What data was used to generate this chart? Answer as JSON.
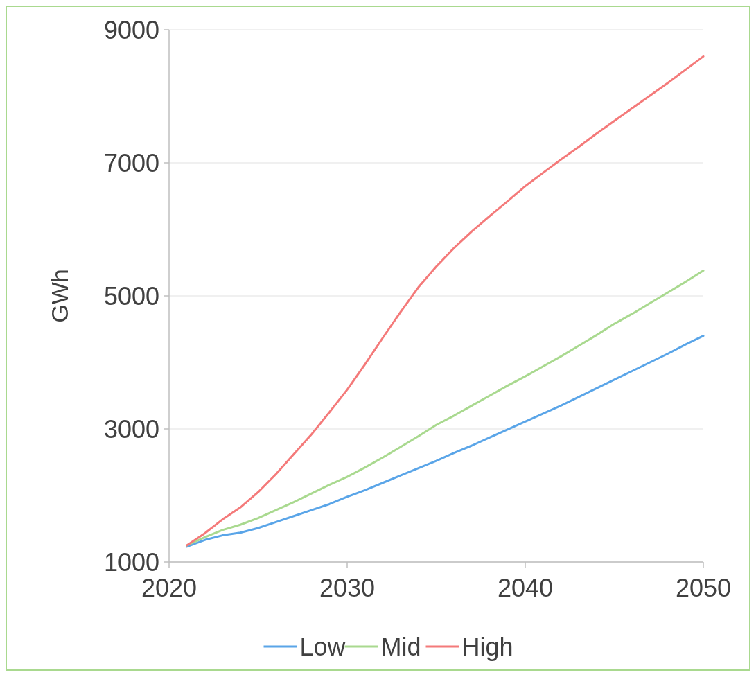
{
  "chart_data": {
    "type": "line",
    "ylabel": "GWh",
    "x": [
      2021,
      2022,
      2023,
      2024,
      2025,
      2026,
      2027,
      2028,
      2029,
      2030,
      2031,
      2032,
      2033,
      2034,
      2035,
      2036,
      2037,
      2038,
      2039,
      2040,
      2041,
      2042,
      2043,
      2044,
      2045,
      2046,
      2047,
      2048,
      2049,
      2050
    ],
    "series": [
      {
        "name": "Low",
        "color": "#5aa5e8",
        "values": [
          1230,
          1330,
          1400,
          1440,
          1510,
          1600,
          1690,
          1780,
          1870,
          1980,
          2080,
          2190,
          2300,
          2410,
          2520,
          2640,
          2750,
          2870,
          2990,
          3110,
          3230,
          3350,
          3480,
          3610,
          3740,
          3870,
          4000,
          4130,
          4270,
          4400
        ]
      },
      {
        "name": "Mid",
        "color": "#a9d98f",
        "values": [
          1250,
          1370,
          1480,
          1560,
          1660,
          1780,
          1900,
          2030,
          2160,
          2280,
          2420,
          2570,
          2730,
          2890,
          3060,
          3200,
          3350,
          3500,
          3650,
          3790,
          3940,
          4090,
          4250,
          4410,
          4580,
          4730,
          4890,
          5050,
          5210,
          5380
        ]
      },
      {
        "name": "High",
        "color": "#f47a7a",
        "values": [
          1250,
          1430,
          1640,
          1820,
          2050,
          2320,
          2620,
          2920,
          3250,
          3590,
          3970,
          4370,
          4760,
          5130,
          5440,
          5720,
          5970,
          6200,
          6420,
          6650,
          6850,
          7050,
          7240,
          7440,
          7630,
          7820,
          8010,
          8200,
          8400,
          8600
        ]
      }
    ],
    "xlim": [
      2020,
      2050
    ],
    "xticks": [
      2020,
      2030,
      2040,
      2050
    ],
    "ylim": [
      1000,
      9000
    ],
    "yticks": [
      1000,
      3000,
      5000,
      7000,
      9000
    ],
    "grid": "y",
    "legend": "bottom",
    "marker": "none",
    "line_style": "solid"
  }
}
